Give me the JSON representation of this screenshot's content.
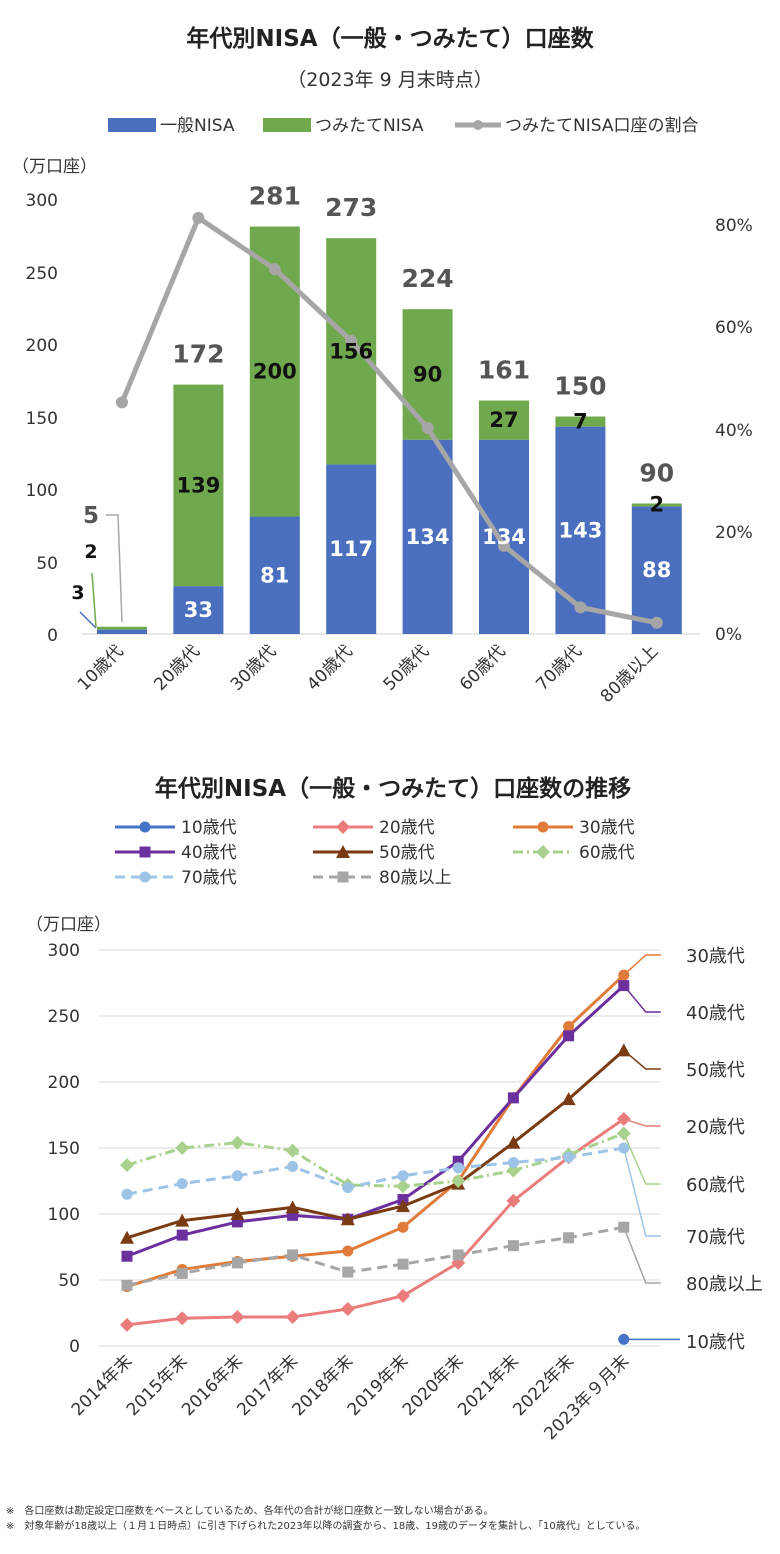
{
  "chart_data": [
    {
      "type": "bar",
      "stacked": true,
      "title": "年代別NISA（一般・つみたて）口座数",
      "subtitle": "（2023年 9 月末時点）",
      "ylabel": "（万口座）",
      "ylim": [
        0,
        300
      ],
      "y_ticks": [
        "300",
        "250",
        "200",
        "150",
        "100",
        "50",
        "0"
      ],
      "y2lim": [
        0,
        0.85
      ],
      "y2_ticks": [
        "80%",
        "60%",
        "40%",
        "20%",
        "0%"
      ],
      "categories": [
        "10歳代",
        "20歳代",
        "30歳代",
        "40歳代",
        "50歳代",
        "60歳代",
        "70歳代",
        "80歳以上"
      ],
      "series": [
        {
          "name": "一般NISA",
          "color": "#4a6fbf",
          "values": [
            3,
            33,
            81,
            117,
            134,
            134,
            143,
            88
          ]
        },
        {
          "name": "つみたてNISA",
          "color": "#70a84d",
          "values": [
            2,
            139,
            200,
            156,
            90,
            27,
            7,
            2
          ]
        }
      ],
      "totals": [
        5,
        172,
        281,
        273,
        224,
        161,
        150,
        90
      ],
      "value_labels": {
        "ippan": [
          "3",
          "33",
          "81",
          "117",
          "134",
          "134",
          "143",
          "88"
        ],
        "tsumitate": [
          "2",
          "139",
          "200",
          "156",
          "90",
          "27",
          "7",
          "2"
        ],
        "totals": [
          "5",
          "172",
          "281",
          "273",
          "224",
          "161",
          "150",
          "90"
        ]
      },
      "line_series": {
        "name": "つみたてNISA口座の割合",
        "color": "#a6a6a6",
        "axis": "right",
        "values": [
          0.45,
          0.81,
          0.71,
          0.57,
          0.4,
          0.17,
          0.05,
          0.02
        ]
      },
      "legend": [
        "一般NISA",
        "つみたてNISA",
        "つみたてNISA口座の割合"
      ],
      "legend_position": "top"
    },
    {
      "type": "line",
      "title": "年代別NISA（一般・つみたて）口座数の推移",
      "ylabel": "（万口座）",
      "ylim": [
        0,
        300
      ],
      "y_ticks": [
        "300",
        "250",
        "200",
        "150",
        "100",
        "50",
        "0"
      ],
      "categories": [
        "2014年末",
        "2015年末",
        "2016年末",
        "2017年末",
        "2018年末",
        "2019年末",
        "2020年末",
        "2021年末",
        "2022年末",
        "2023年９月末"
      ],
      "series": [
        {
          "name": "10歳代",
          "color": "#4472c4",
          "marker": "circle",
          "dash": "",
          "values": [
            null,
            null,
            null,
            null,
            null,
            null,
            null,
            null,
            null,
            5
          ]
        },
        {
          "name": "20歳代",
          "color": "#ea7c7c",
          "marker": "diamond",
          "dash": "",
          "values": [
            16,
            21,
            22,
            22,
            28,
            38,
            63,
            110,
            143,
            172
          ]
        },
        {
          "name": "30歳代",
          "color": "#e07b39",
          "marker": "circle",
          "dash": "",
          "values": [
            45,
            58,
            64,
            68,
            72,
            90,
            125,
            188,
            242,
            281
          ]
        },
        {
          "name": "40歳代",
          "color": "#6c2f9e",
          "marker": "square",
          "dash": "",
          "values": [
            68,
            84,
            94,
            99,
            96,
            111,
            140,
            188,
            235,
            273
          ]
        },
        {
          "name": "50歳代",
          "color": "#7a3b12",
          "marker": "triangle",
          "dash": "",
          "values": [
            82,
            95,
            100,
            105,
            96,
            106,
            123,
            154,
            187,
            224
          ]
        },
        {
          "name": "60歳代",
          "color": "#a9d18e",
          "marker": "diamond",
          "dash": "10,4,2,4",
          "values": [
            137,
            150,
            154,
            148,
            122,
            121,
            125,
            133,
            145,
            161
          ]
        },
        {
          "name": "70歳代",
          "color": "#9dc3e6",
          "marker": "circle",
          "dash": "10,6",
          "values": [
            115,
            123,
            129,
            136,
            120,
            129,
            135,
            139,
            143,
            150
          ]
        },
        {
          "name": "80歳以上",
          "color": "#a6a6a6",
          "marker": "square",
          "dash": "10,6",
          "values": [
            46,
            55,
            63,
            69,
            56,
            62,
            69,
            76,
            82,
            90
          ]
        }
      ],
      "legend_position": "top",
      "end_labels": [
        "30歳代",
        "40歳代",
        "50歳代",
        "20歳代",
        "60歳代",
        "70歳代",
        "80歳以上",
        "10歳代"
      ]
    }
  ],
  "notes": [
    "※　各口座数は勘定設定口座数をベースとしているため、各年代の合計が総口座数と一致しない場合がある。",
    "※　対象年齢が18歳以上（１月１日時点）に引き下げられた2023年以降の調査から、18歳、19歳のデータを集計し、「10歳代」としている。"
  ]
}
